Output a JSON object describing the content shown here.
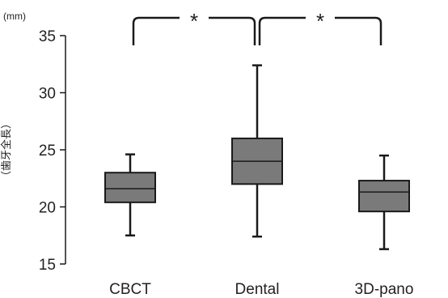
{
  "chart_data": {
    "type": "box",
    "unit": "(mm)",
    "ylabel": "（歯牙全長）",
    "ylim": [
      15,
      35
    ],
    "yticks": [
      15,
      20,
      25,
      30,
      35
    ],
    "grid": false,
    "categories": [
      "CBCT",
      "Dental",
      "3D-pano"
    ],
    "box_color": "#7a7a7a",
    "boxes": [
      {
        "name": "CBCT",
        "min": 17.5,
        "q1": 20.4,
        "median": 21.6,
        "q3": 23.0,
        "max": 24.6
      },
      {
        "name": "Dental",
        "min": 17.4,
        "q1": 22.0,
        "median": 24.0,
        "q3": 26.0,
        "max": 32.4
      },
      {
        "name": "3D-pano",
        "min": 16.3,
        "q1": 19.6,
        "median": 21.3,
        "q3": 22.3,
        "max": 24.5
      }
    ],
    "significance": [
      {
        "from": "CBCT",
        "to": "Dental",
        "label": "*"
      },
      {
        "from": "Dental",
        "to": "3D-pano",
        "label": "*"
      }
    ]
  }
}
